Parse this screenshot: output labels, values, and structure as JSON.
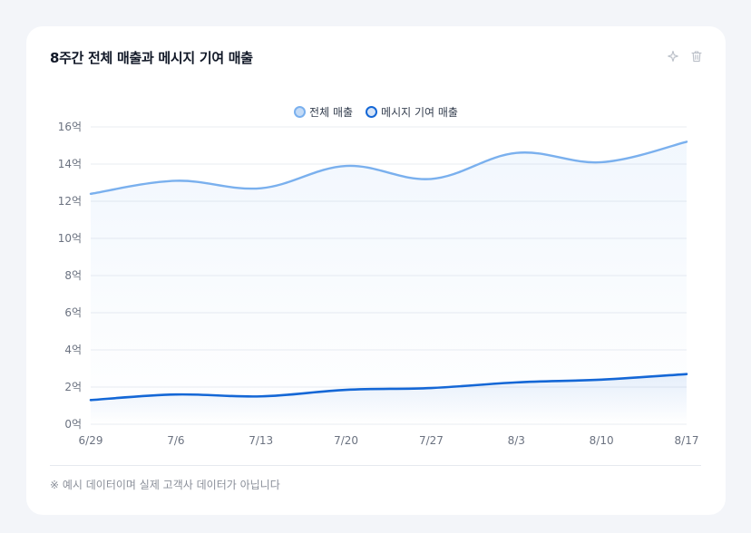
{
  "card": {
    "title": "8주간 전체 매출과 메시지 기여 매출",
    "actions": [
      {
        "name": "sparkle-icon"
      },
      {
        "name": "trash-icon"
      }
    ]
  },
  "footnote": "※ 예시 데이터이며 실제 고객사 데이터가 아닙니다",
  "colors": {
    "total": "#7ab0ee",
    "total_fill": "#c4dbf6",
    "message": "#1467d6",
    "message_fill": "#d6e4f7",
    "grid": "#e9ecf1",
    "tick": "#6b7280"
  },
  "chart_data": {
    "type": "line",
    "x": [
      "6/29",
      "7/6",
      "7/13",
      "7/20",
      "7/27",
      "8/3",
      "8/10",
      "8/17"
    ],
    "ylim": [
      0,
      16
    ],
    "yticks": [
      0,
      2,
      4,
      6,
      8,
      10,
      12,
      14,
      16
    ],
    "ytick_labels": [
      "0억",
      "2억",
      "4억",
      "6억",
      "8억",
      "10억",
      "12억",
      "14억",
      "16억"
    ],
    "grid": true,
    "legend": "top-center",
    "series": [
      {
        "name": "전체 매출",
        "values": [
          12.4,
          13.1,
          12.7,
          13.9,
          13.2,
          14.6,
          14.1,
          15.2
        ]
      },
      {
        "name": "메시지 기여 매출",
        "values": [
          1.3,
          1.6,
          1.5,
          1.85,
          1.95,
          2.25,
          2.4,
          2.7
        ]
      }
    ]
  }
}
